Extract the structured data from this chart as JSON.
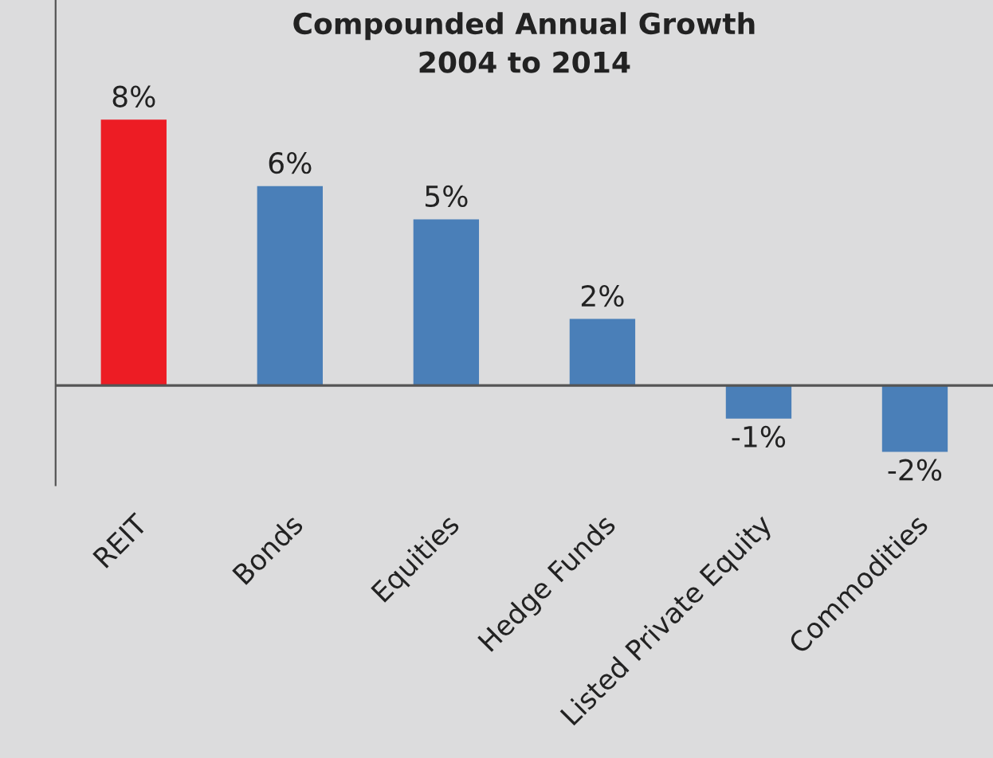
{
  "chart_data": {
    "type": "bar",
    "title": "Compounded Annual Growth\n2004 to 2014",
    "categories": [
      "REIT",
      "Bonds",
      "Equities",
      "Hedge Funds",
      "Listed Private Equity",
      "Commodities"
    ],
    "values": [
      8,
      6,
      5,
      2,
      -1,
      -2
    ],
    "value_labels": [
      "8%",
      "6%",
      "5%",
      "2%",
      "-1%",
      "-2%"
    ],
    "colors": [
      "#ed1c24",
      "#4a7fb8",
      "#4a7fb8",
      "#4a7fb8",
      "#4a7fb8",
      "#4a7fb8"
    ],
    "grid": false,
    "legend": false
  }
}
